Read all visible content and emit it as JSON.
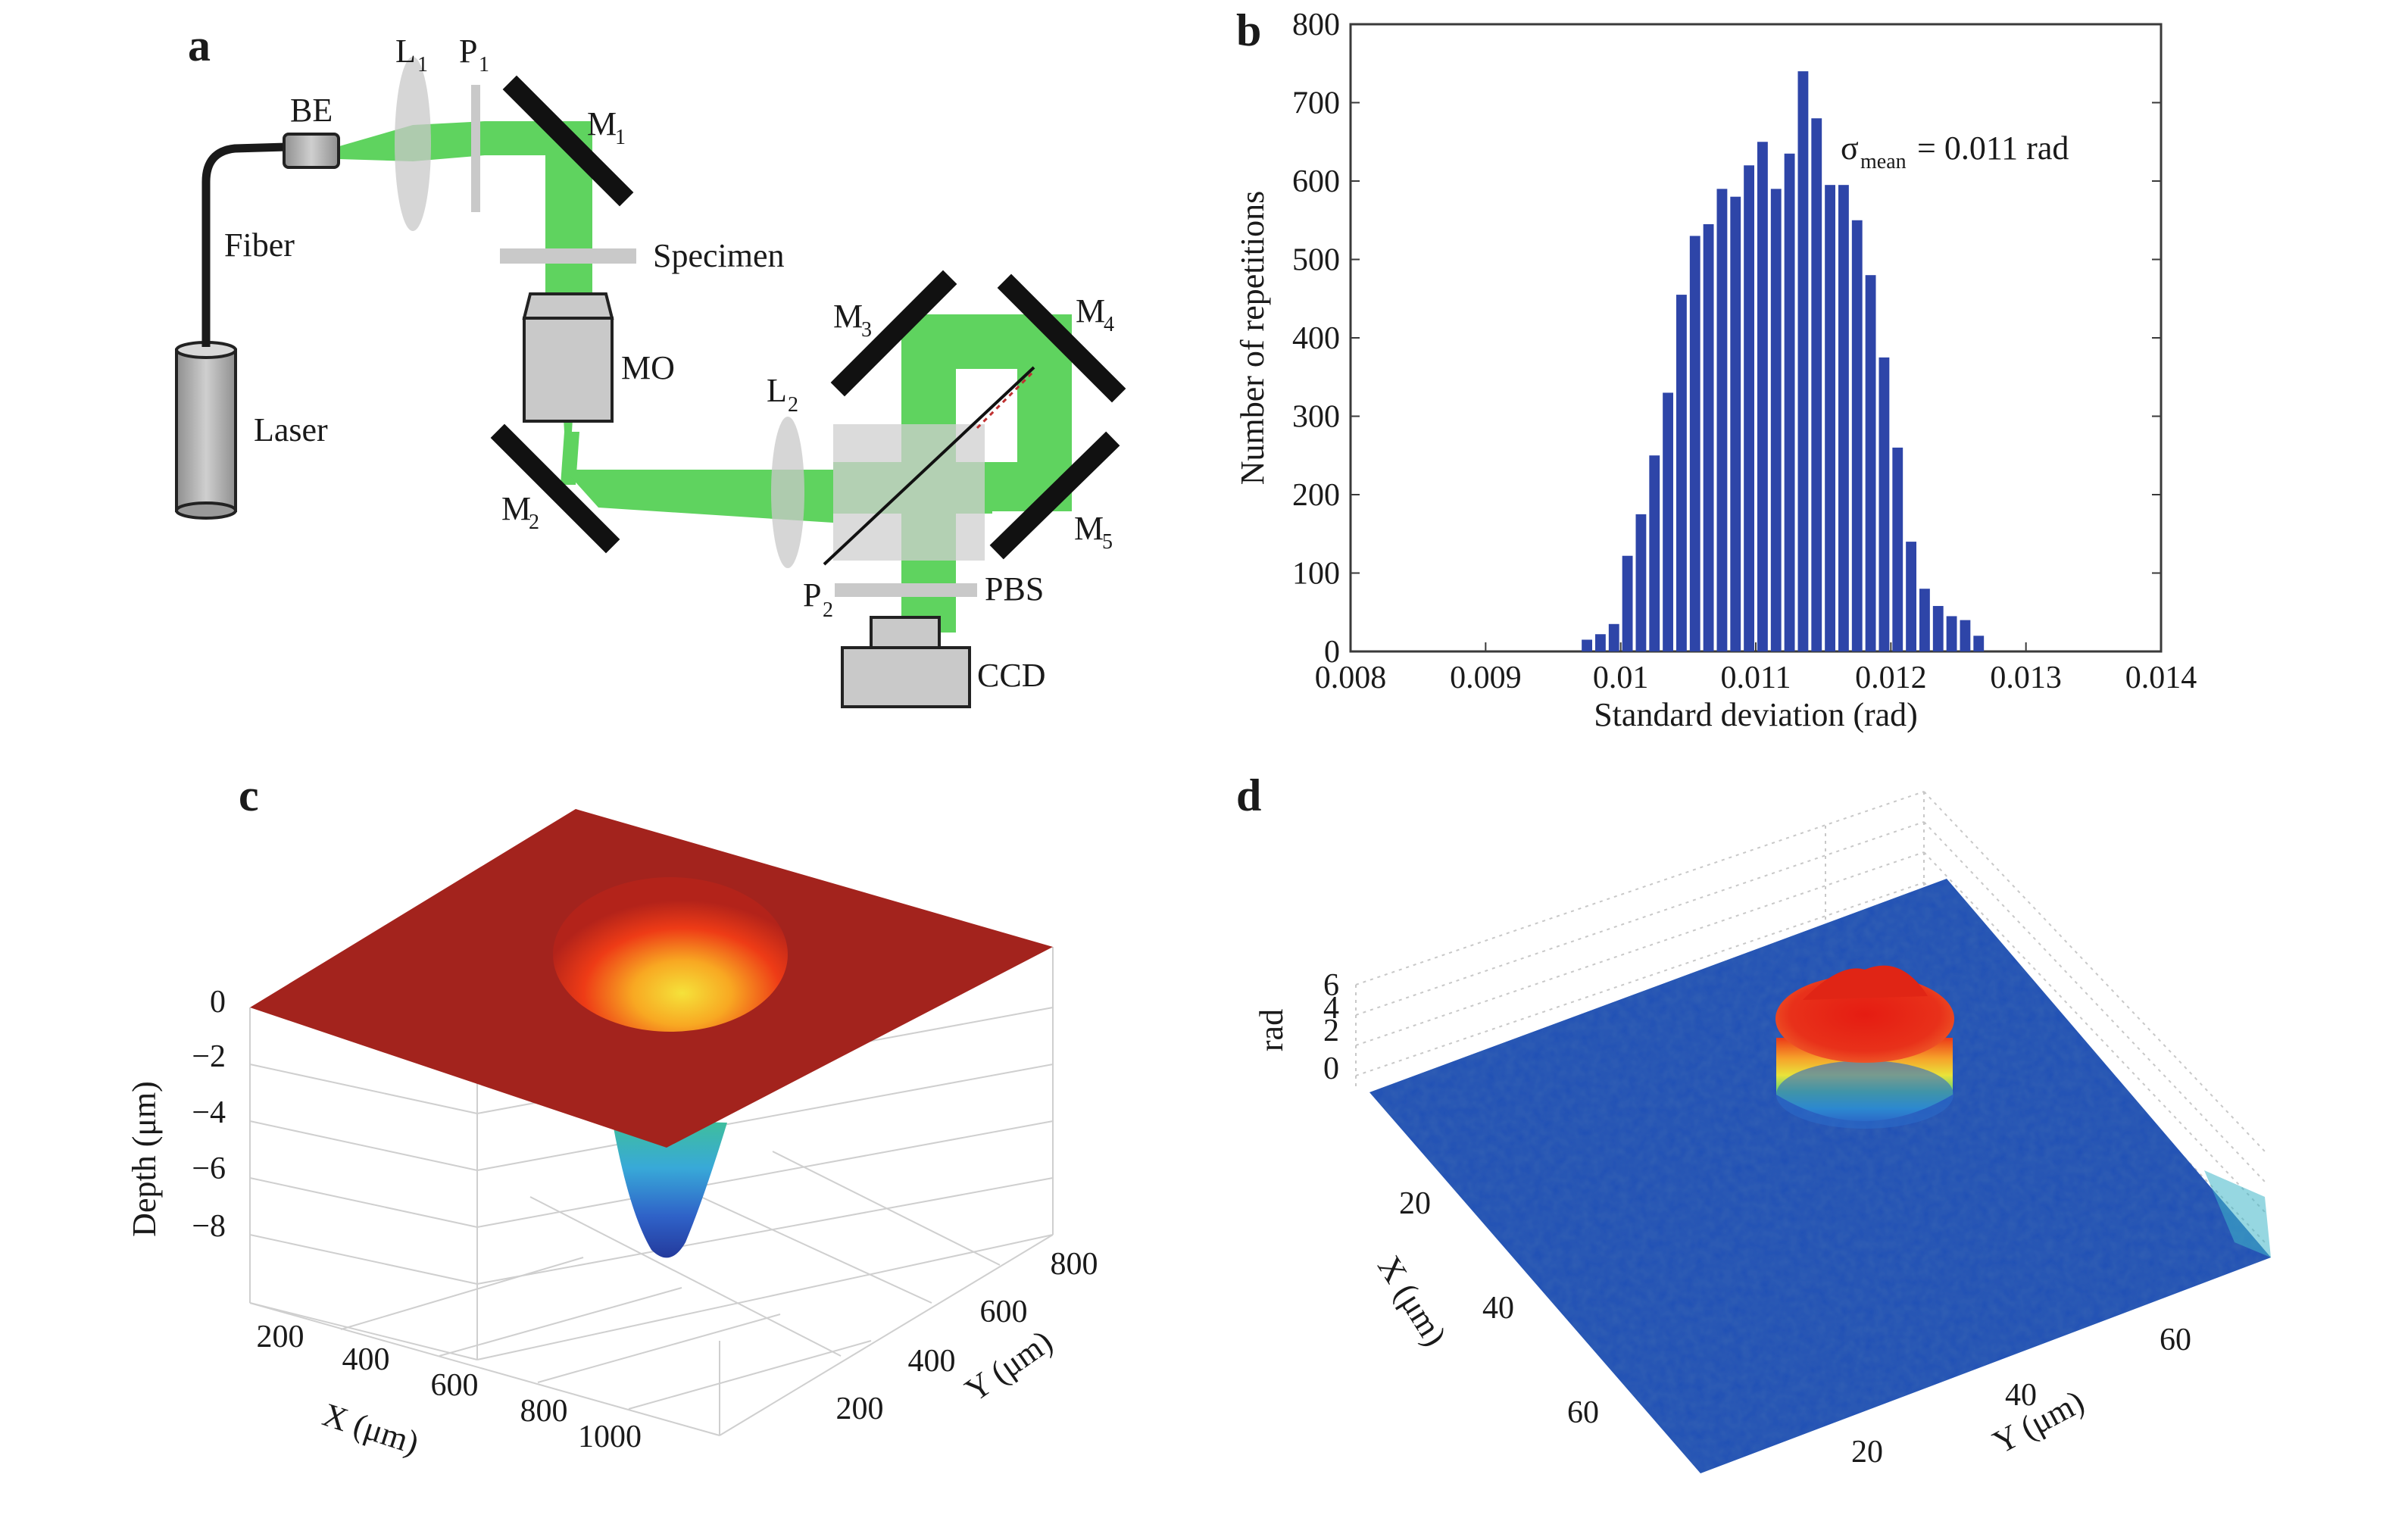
{
  "panels": {
    "a": {
      "label": "a",
      "components": {
        "be": "BE",
        "fiber": "Fiber",
        "laser": "Laser",
        "l1": "L",
        "l1_sub": "1",
        "p1": "P",
        "p1_sub": "1",
        "m1": "M",
        "m1_sub": "1",
        "specimen": "Specimen",
        "mo": "MO",
        "m2": "M",
        "m2_sub": "2",
        "l2": "L",
        "l2_sub": "2",
        "m3": "M",
        "m3_sub": "3",
        "m4": "M",
        "m4_sub": "4",
        "m5": "M",
        "m5_sub": "5",
        "p2": "P",
        "p2_sub": "2",
        "pbs": "PBS",
        "ccd": "CCD"
      },
      "beam_color": "#5fd35f"
    },
    "b": {
      "label": "b",
      "annotation": {
        "sigma": "σ",
        "sub": "mean",
        "rest": " = 0.011 rad"
      },
      "bar_color": "#2e45a8"
    },
    "c": {
      "label": "c",
      "zlabel": "Depth (μm)",
      "xlabel": "X (μm)",
      "ylabel": "Y (μm)",
      "zticks": [
        "0",
        "−2",
        "−4",
        "−6",
        "−8"
      ],
      "xticks": [
        "200",
        "400",
        "600",
        "800",
        "1000"
      ],
      "yticks": [
        "200",
        "400",
        "600",
        "800"
      ],
      "surface_color": "#a3231d"
    },
    "d": {
      "label": "d",
      "zlabel": "rad",
      "xlabel": "X (μm)",
      "ylabel": "Y (μm)",
      "zticks": [
        "6",
        "4",
        "2",
        "0"
      ],
      "xticks": [
        "20",
        "40",
        "60"
      ],
      "yticks": [
        "20",
        "40",
        "60"
      ],
      "surface_color": "#1f4fb5"
    }
  },
  "chart_data": {
    "type": "bar",
    "title": "",
    "xlabel": "Standard deviation (rad)",
    "ylabel": "Number of repetitions",
    "xlim": [
      0.008,
      0.014
    ],
    "ylim": [
      0,
      800
    ],
    "xticks": [
      "0.008",
      "0.009",
      "0.01",
      "0.011",
      "0.012",
      "0.013",
      "0.014"
    ],
    "yticks": [
      "0",
      "100",
      "200",
      "300",
      "400",
      "500",
      "600",
      "700",
      "800"
    ],
    "grid": false,
    "bin_width": 0.0001,
    "x": [
      0.00975,
      0.00985,
      0.00995,
      0.01005,
      0.01015,
      0.01025,
      0.01035,
      0.01045,
      0.01055,
      0.01065,
      0.01075,
      0.01085,
      0.01095,
      0.01105,
      0.01115,
      0.01125,
      0.01135,
      0.01145,
      0.01155,
      0.01165,
      0.01175,
      0.01185,
      0.01195,
      0.01205,
      0.01215,
      0.01225,
      0.01235,
      0.01245,
      0.01255,
      0.01265
    ],
    "values": [
      15,
      22,
      35,
      122,
      175,
      250,
      330,
      455,
      530,
      545,
      590,
      580,
      620,
      650,
      590,
      635,
      740,
      680,
      595,
      595,
      550,
      480,
      375,
      260,
      140,
      80,
      58,
      45,
      40,
      20
    ]
  }
}
